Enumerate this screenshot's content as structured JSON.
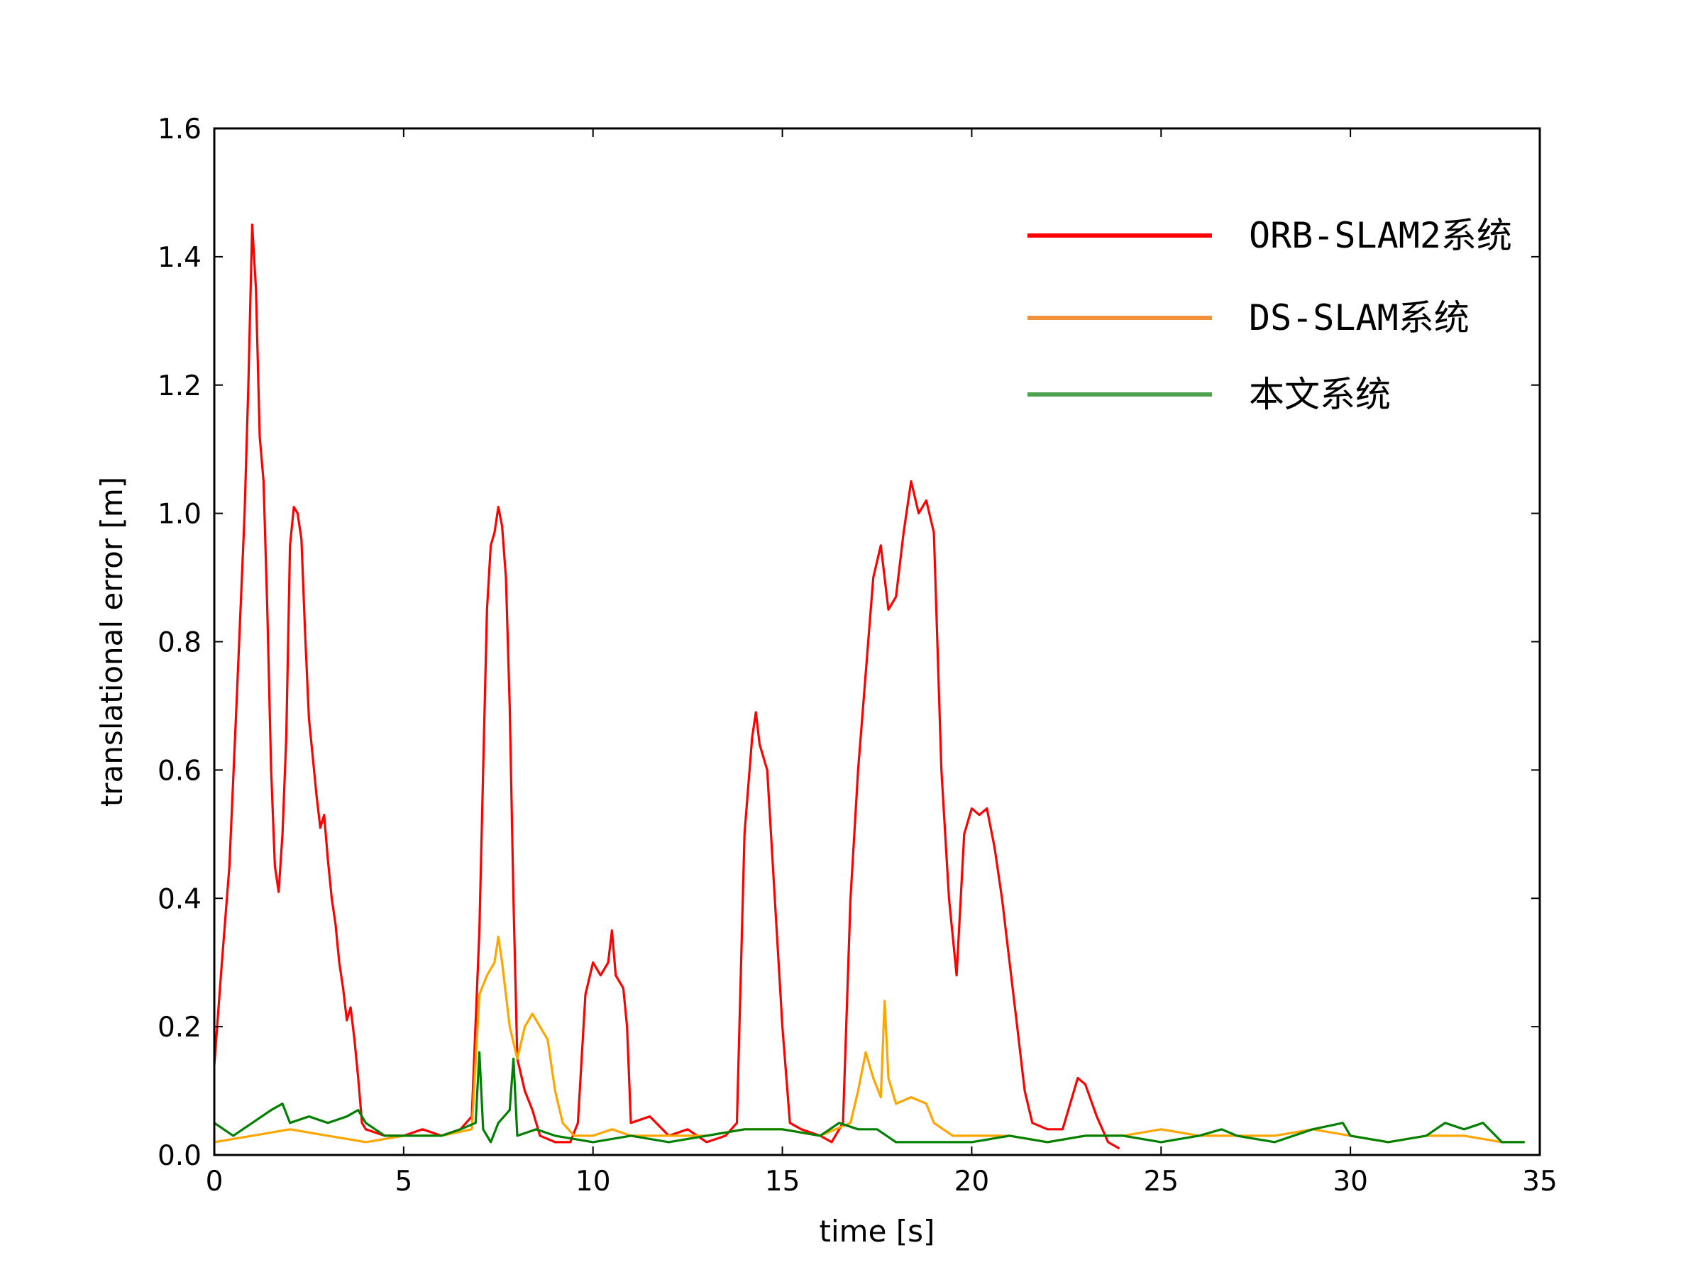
{
  "chart_data": {
    "type": "line",
    "xlabel": "time [s]",
    "ylabel": "translational error [m]",
    "xlim": [
      0,
      35
    ],
    "ylim": [
      0,
      1.6
    ],
    "xticks": [
      "0",
      "5",
      "10",
      "15",
      "20",
      "25",
      "30",
      "35"
    ],
    "yticks": [
      "0.0",
      "0.2",
      "0.4",
      "0.6",
      "0.8",
      "1.0",
      "1.2",
      "1.4",
      "1.6"
    ],
    "grid": false,
    "legend_position": "top-right",
    "series": [
      {
        "name": "ORB-SLAM2系统",
        "color": "#ff0000",
        "legend_color": "#ff0000",
        "points": [
          [
            0,
            0.14
          ],
          [
            0.2,
            0.3
          ],
          [
            0.4,
            0.45
          ],
          [
            0.6,
            0.72
          ],
          [
            0.8,
            1.0
          ],
          [
            0.9,
            1.2
          ],
          [
            1.0,
            1.45
          ],
          [
            1.1,
            1.35
          ],
          [
            1.2,
            1.12
          ],
          [
            1.3,
            1.05
          ],
          [
            1.4,
            0.85
          ],
          [
            1.5,
            0.6
          ],
          [
            1.6,
            0.45
          ],
          [
            1.7,
            0.41
          ],
          [
            1.8,
            0.5
          ],
          [
            1.9,
            0.65
          ],
          [
            2.0,
            0.95
          ],
          [
            2.1,
            1.01
          ],
          [
            2.2,
            1.0
          ],
          [
            2.3,
            0.96
          ],
          [
            2.4,
            0.81
          ],
          [
            2.5,
            0.68
          ],
          [
            2.6,
            0.62
          ],
          [
            2.7,
            0.56
          ],
          [
            2.8,
            0.51
          ],
          [
            2.9,
            0.53
          ],
          [
            3.0,
            0.46
          ],
          [
            3.1,
            0.4
          ],
          [
            3.2,
            0.36
          ],
          [
            3.3,
            0.3
          ],
          [
            3.4,
            0.26
          ],
          [
            3.5,
            0.21
          ],
          [
            3.6,
            0.23
          ],
          [
            3.7,
            0.18
          ],
          [
            3.8,
            0.12
          ],
          [
            3.9,
            0.05
          ],
          [
            4.0,
            0.04
          ],
          [
            4.5,
            0.03
          ],
          [
            5.0,
            0.03
          ],
          [
            5.5,
            0.04
          ],
          [
            6.0,
            0.03
          ],
          [
            6.5,
            0.04
          ],
          [
            6.8,
            0.06
          ],
          [
            7.0,
            0.35
          ],
          [
            7.1,
            0.6
          ],
          [
            7.2,
            0.85
          ],
          [
            7.3,
            0.95
          ],
          [
            7.4,
            0.97
          ],
          [
            7.5,
            1.01
          ],
          [
            7.6,
            0.98
          ],
          [
            7.7,
            0.9
          ],
          [
            7.8,
            0.7
          ],
          [
            7.9,
            0.4
          ],
          [
            8.0,
            0.15
          ],
          [
            8.2,
            0.1
          ],
          [
            8.4,
            0.07
          ],
          [
            8.6,
            0.03
          ],
          [
            9.0,
            0.02
          ],
          [
            9.4,
            0.02
          ],
          [
            9.6,
            0.05
          ],
          [
            9.8,
            0.25
          ],
          [
            10.0,
            0.3
          ],
          [
            10.2,
            0.28
          ],
          [
            10.4,
            0.3
          ],
          [
            10.5,
            0.35
          ],
          [
            10.6,
            0.28
          ],
          [
            10.8,
            0.26
          ],
          [
            10.9,
            0.2
          ],
          [
            11.0,
            0.05
          ],
          [
            11.5,
            0.06
          ],
          [
            12.0,
            0.03
          ],
          [
            12.5,
            0.04
          ],
          [
            13.0,
            0.02
          ],
          [
            13.5,
            0.03
          ],
          [
            13.8,
            0.05
          ],
          [
            14.0,
            0.5
          ],
          [
            14.2,
            0.65
          ],
          [
            14.3,
            0.69
          ],
          [
            14.4,
            0.64
          ],
          [
            14.6,
            0.6
          ],
          [
            14.8,
            0.4
          ],
          [
            15.0,
            0.2
          ],
          [
            15.2,
            0.05
          ],
          [
            15.5,
            0.04
          ],
          [
            16.0,
            0.03
          ],
          [
            16.3,
            0.02
          ],
          [
            16.6,
            0.05
          ],
          [
            16.8,
            0.4
          ],
          [
            17.0,
            0.6
          ],
          [
            17.2,
            0.75
          ],
          [
            17.4,
            0.9
          ],
          [
            17.6,
            0.95
          ],
          [
            17.8,
            0.85
          ],
          [
            18.0,
            0.87
          ],
          [
            18.2,
            0.97
          ],
          [
            18.4,
            1.05
          ],
          [
            18.6,
            1.0
          ],
          [
            18.8,
            1.02
          ],
          [
            19.0,
            0.97
          ],
          [
            19.2,
            0.6
          ],
          [
            19.4,
            0.4
          ],
          [
            19.6,
            0.28
          ],
          [
            19.8,
            0.5
          ],
          [
            20.0,
            0.54
          ],
          [
            20.2,
            0.53
          ],
          [
            20.4,
            0.54
          ],
          [
            20.6,
            0.48
          ],
          [
            20.8,
            0.4
          ],
          [
            21.0,
            0.3
          ],
          [
            21.2,
            0.2
          ],
          [
            21.4,
            0.1
          ],
          [
            21.6,
            0.05
          ],
          [
            22.0,
            0.04
          ],
          [
            22.4,
            0.04
          ],
          [
            22.6,
            0.08
          ],
          [
            22.8,
            0.12
          ],
          [
            23.0,
            0.11
          ],
          [
            23.3,
            0.06
          ],
          [
            23.6,
            0.02
          ],
          [
            23.9,
            0.01
          ]
        ]
      },
      {
        "name": "DS-SLAM系统",
        "color": "#ffa500",
        "legend_color": "#f0903a",
        "points": [
          [
            0,
            0.02
          ],
          [
            1,
            0.03
          ],
          [
            2,
            0.04
          ],
          [
            3,
            0.03
          ],
          [
            4,
            0.02
          ],
          [
            5,
            0.03
          ],
          [
            6,
            0.03
          ],
          [
            6.8,
            0.04
          ],
          [
            7.0,
            0.25
          ],
          [
            7.2,
            0.28
          ],
          [
            7.4,
            0.3
          ],
          [
            7.5,
            0.34
          ],
          [
            7.6,
            0.3
          ],
          [
            7.8,
            0.2
          ],
          [
            8.0,
            0.15
          ],
          [
            8.2,
            0.2
          ],
          [
            8.4,
            0.22
          ],
          [
            8.6,
            0.2
          ],
          [
            8.8,
            0.18
          ],
          [
            9.0,
            0.1
          ],
          [
            9.2,
            0.05
          ],
          [
            9.5,
            0.03
          ],
          [
            10,
            0.03
          ],
          [
            10.5,
            0.04
          ],
          [
            11,
            0.03
          ],
          [
            12,
            0.03
          ],
          [
            13,
            0.03
          ],
          [
            14,
            0.04
          ],
          [
            15,
            0.04
          ],
          [
            16,
            0.03
          ],
          [
            16.8,
            0.05
          ],
          [
            17.0,
            0.1
          ],
          [
            17.2,
            0.16
          ],
          [
            17.4,
            0.12
          ],
          [
            17.6,
            0.09
          ],
          [
            17.7,
            0.24
          ],
          [
            17.8,
            0.12
          ],
          [
            18.0,
            0.08
          ],
          [
            18.4,
            0.09
          ],
          [
            18.8,
            0.08
          ],
          [
            19.0,
            0.05
          ],
          [
            19.5,
            0.03
          ],
          [
            20,
            0.03
          ],
          [
            21,
            0.03
          ],
          [
            22,
            0.02
          ],
          [
            23,
            0.03
          ],
          [
            24,
            0.03
          ],
          [
            25,
            0.04
          ],
          [
            26,
            0.03
          ],
          [
            27,
            0.03
          ],
          [
            28,
            0.03
          ],
          [
            29,
            0.04
          ],
          [
            30,
            0.03
          ],
          [
            31,
            0.02
          ],
          [
            32,
            0.03
          ],
          [
            33,
            0.03
          ],
          [
            34,
            0.02
          ],
          [
            34.6,
            0.02
          ]
        ]
      },
      {
        "name": "本文系统",
        "color": "#008000",
        "legend_color": "#4da34d",
        "points": [
          [
            0,
            0.05
          ],
          [
            0.5,
            0.03
          ],
          [
            1.0,
            0.05
          ],
          [
            1.5,
            0.07
          ],
          [
            1.8,
            0.08
          ],
          [
            2.0,
            0.05
          ],
          [
            2.5,
            0.06
          ],
          [
            3.0,
            0.05
          ],
          [
            3.5,
            0.06
          ],
          [
            3.8,
            0.07
          ],
          [
            4.0,
            0.05
          ],
          [
            4.5,
            0.03
          ],
          [
            5,
            0.03
          ],
          [
            5.5,
            0.03
          ],
          [
            6,
            0.03
          ],
          [
            6.5,
            0.04
          ],
          [
            6.9,
            0.05
          ],
          [
            7.0,
            0.16
          ],
          [
            7.1,
            0.04
          ],
          [
            7.3,
            0.02
          ],
          [
            7.5,
            0.05
          ],
          [
            7.8,
            0.07
          ],
          [
            7.9,
            0.15
          ],
          [
            8.0,
            0.03
          ],
          [
            8.5,
            0.04
          ],
          [
            9,
            0.03
          ],
          [
            10,
            0.02
          ],
          [
            11,
            0.03
          ],
          [
            12,
            0.02
          ],
          [
            13,
            0.03
          ],
          [
            14,
            0.04
          ],
          [
            15,
            0.04
          ],
          [
            16,
            0.03
          ],
          [
            16.5,
            0.05
          ],
          [
            17,
            0.04
          ],
          [
            17.5,
            0.04
          ],
          [
            18,
            0.02
          ],
          [
            19,
            0.02
          ],
          [
            20,
            0.02
          ],
          [
            21,
            0.03
          ],
          [
            22,
            0.02
          ],
          [
            23,
            0.03
          ],
          [
            24,
            0.03
          ],
          [
            25,
            0.02
          ],
          [
            26,
            0.03
          ],
          [
            26.6,
            0.04
          ],
          [
            27,
            0.03
          ],
          [
            28,
            0.02
          ],
          [
            29,
            0.04
          ],
          [
            29.8,
            0.05
          ],
          [
            30,
            0.03
          ],
          [
            31,
            0.02
          ],
          [
            32,
            0.03
          ],
          [
            32.5,
            0.05
          ],
          [
            33,
            0.04
          ],
          [
            33.5,
            0.05
          ],
          [
            34,
            0.02
          ],
          [
            34.6,
            0.02
          ]
        ]
      }
    ]
  }
}
